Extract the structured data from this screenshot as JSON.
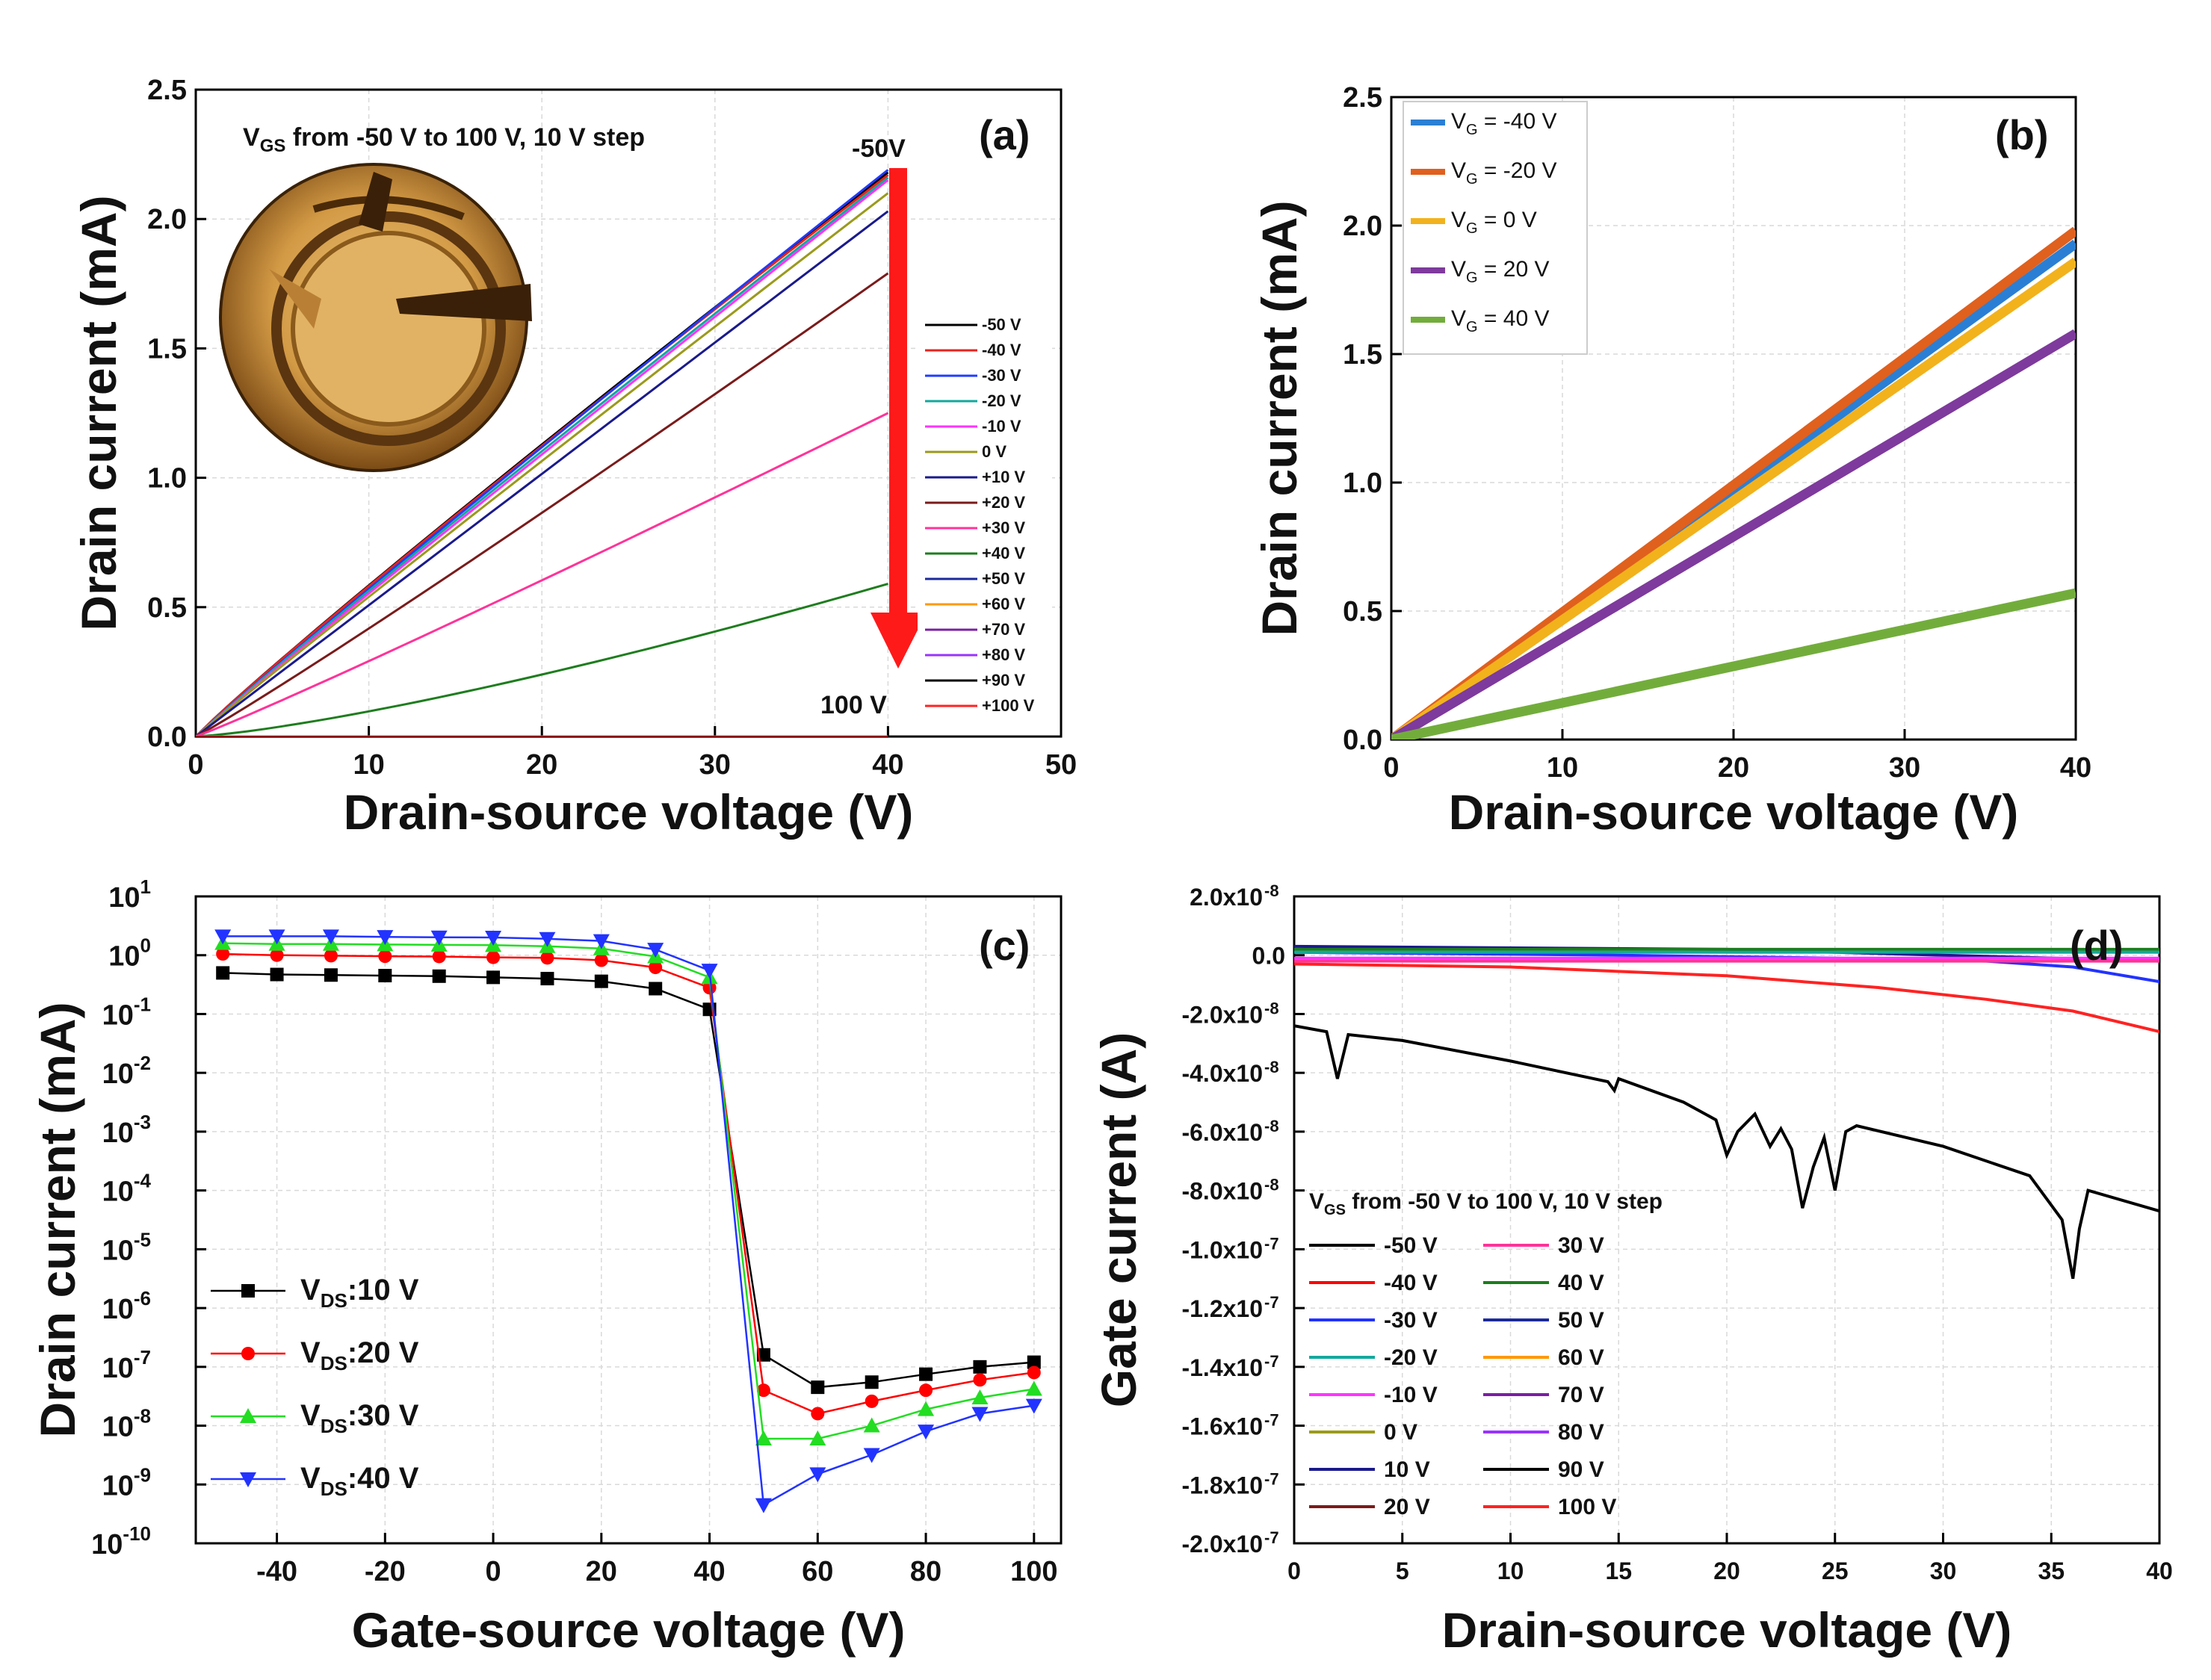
{
  "chart_data": [
    {
      "panel": "(a)",
      "type": "line",
      "xlabel": "Drain-source voltage (V)",
      "ylabel": "Drain current (mA)",
      "xlim": [
        0,
        50
      ],
      "ylim": [
        0,
        2.5
      ],
      "xticks": [
        "0",
        "10",
        "20",
        "30",
        "40",
        "50"
      ],
      "yticks": [
        "0.0",
        "0.5",
        "1.0",
        "1.5",
        "2.0",
        "2.5"
      ],
      "annotations": {
        "sweep_label": "V",
        "sweep_sub": "GS",
        "sweep_rest": " from -50 V to 100 V, 10 V step",
        "arrow_top": "-50V",
        "arrow_bottom": "100 V",
        "inset": "device micrograph"
      },
      "x": [
        0,
        40
      ],
      "series": [
        {
          "name": "-50 V",
          "color": "#000000",
          "end": 2.18,
          "curve": 0.95
        },
        {
          "name": "-40 V",
          "color": "#e8231c",
          "end": 2.17,
          "curve": 0.95
        },
        {
          "name": "-30 V",
          "color": "#1f3bff",
          "end": 2.19,
          "curve": 0.97
        },
        {
          "name": "-20 V",
          "color": "#13a89e",
          "end": 2.16,
          "curve": 0.97
        },
        {
          "name": "-10 V",
          "color": "#ff33ff",
          "end": 2.15,
          "curve": 0.98
        },
        {
          "name": "0 V",
          "color": "#9a9a1c",
          "end": 2.1,
          "curve": 0.98
        },
        {
          "name": "+10 V",
          "color": "#1a1a8c",
          "end": 2.03,
          "curve": 1.0
        },
        {
          "name": "+20 V",
          "color": "#7a1b1b",
          "end": 1.79,
          "curve": 1.05
        },
        {
          "name": "+30 V",
          "color": "#ff3399",
          "end": 1.25,
          "curve": 1.05
        },
        {
          "name": "+40 V",
          "color": "#1e7d1e",
          "end": 0.59,
          "curve": 1.3
        },
        {
          "name": "+50 V",
          "color": "#1b2a9a",
          "end": 0.0,
          "curve": 1.0
        },
        {
          "name": "+60 V",
          "color": "#ff9900",
          "end": 0.0,
          "curve": 1.0
        },
        {
          "name": "+70 V",
          "color": "#7a1fa2",
          "end": 0.0,
          "curve": 1.0
        },
        {
          "name": "+80 V",
          "color": "#9933ff",
          "end": 0.0,
          "curve": 1.0
        },
        {
          "name": "+90 V",
          "color": "#000000",
          "end": 0.0,
          "curve": 1.0
        },
        {
          "name": "+100 V",
          "color": "#ff2222",
          "end": 0.0,
          "curve": 1.0
        }
      ]
    },
    {
      "panel": "(b)",
      "type": "line",
      "xlabel": "Drain-source voltage (V)",
      "ylabel": "Drain current (mA)",
      "xlim": [
        0,
        40
      ],
      "ylim": [
        0,
        2.5
      ],
      "xticks": [
        "0",
        "10",
        "20",
        "30",
        "40"
      ],
      "yticks": [
        "0.0",
        "0.5",
        "1.0",
        "1.5",
        "2.0",
        "2.5"
      ],
      "x": [
        0,
        40
      ],
      "series": [
        {
          "name_main": "V",
          "name_sub": "G",
          "name_rest": " = -40 V",
          "color": "#2a7fd4",
          "end": 1.93
        },
        {
          "name_main": "V",
          "name_sub": "G",
          "name_rest": " = -20 V",
          "color": "#e0601e",
          "end": 1.98
        },
        {
          "name_main": "V",
          "name_sub": "G",
          "name_rest": " = 0 V",
          "color": "#f2b21c",
          "end": 1.86
        },
        {
          "name_main": "V",
          "name_sub": "G",
          "name_rest": " = 20 V",
          "color": "#7e3a9c",
          "end": 1.58
        },
        {
          "name_main": "V",
          "name_sub": "G",
          "name_rest": " = 40 V",
          "color": "#72ad3c",
          "end": 0.57
        }
      ]
    },
    {
      "panel": "(c)",
      "type": "line",
      "yscale": "log",
      "xlabel": "Gate-source voltage (V)",
      "ylabel": "Drain current (mA)",
      "xlim": [
        -55,
        105
      ],
      "ylim_exp": [
        -10,
        1
      ],
      "xticks": [
        "-40",
        "-20",
        "0",
        "20",
        "40",
        "60",
        "80",
        "100"
      ],
      "ytick_base": "10",
      "x": [
        -50,
        -40,
        -30,
        -20,
        -10,
        0,
        10,
        20,
        30,
        40,
        50,
        60,
        70,
        80,
        90,
        100
      ],
      "series": [
        {
          "name_main": "V",
          "name_sub": "DS",
          "name_rest": ":10 V",
          "color": "#000000",
          "marker": "square",
          "values": [
            0.5,
            0.47,
            0.46,
            0.45,
            0.44,
            0.42,
            0.4,
            0.36,
            0.27,
            0.12,
            1.6e-07,
            4.5e-08,
            5.5e-08,
            7.5e-08,
            1e-07,
            1.2e-07
          ]
        },
        {
          "name_main": "V",
          "name_sub": "DS",
          "name_rest": ":20 V",
          "color": "#ff0000",
          "marker": "circle",
          "values": [
            1.05,
            1.0,
            0.98,
            0.96,
            0.95,
            0.92,
            0.9,
            0.82,
            0.62,
            0.28,
            4e-08,
            1.6e-08,
            2.6e-08,
            4e-08,
            6e-08,
            8e-08
          ]
        },
        {
          "name_main": "V",
          "name_sub": "DS",
          "name_rest": ":30 V",
          "color": "#22dd22",
          "marker": "triangle-up",
          "values": [
            1.6,
            1.55,
            1.55,
            1.52,
            1.5,
            1.48,
            1.42,
            1.3,
            0.95,
            0.42,
            6e-09,
            6e-09,
            1e-08,
            1.9e-08,
            3e-08,
            4.2e-08
          ]
        },
        {
          "name_main": "V",
          "name_sub": "DS",
          "name_rest": ":40 V",
          "color": "#2233ff",
          "marker": "triangle-down",
          "values": [
            2.1,
            2.1,
            2.1,
            2.05,
            2.02,
            2.0,
            1.9,
            1.75,
            1.25,
            0.55,
            4.5e-10,
            1.5e-09,
            3.2e-09,
            8e-09,
            1.6e-08,
            2.2e-08
          ]
        }
      ]
    },
    {
      "panel": "(d)",
      "type": "line",
      "xlabel": "Drain-source voltage (V)",
      "ylabel": "Gate current (A)",
      "xlim": [
        0,
        40
      ],
      "ylim": [
        -2e-07,
        2e-08
      ],
      "xticks": [
        "0",
        "5",
        "10",
        "15",
        "20",
        "25",
        "30",
        "35",
        "40"
      ],
      "yticks": [
        {
          "value": 2e-08,
          "mant": "2.0x10",
          "exp": "-8"
        },
        {
          "value": 0,
          "mant": "0.0",
          "exp": ""
        },
        {
          "value": -2e-08,
          "mant": "-2.0x10",
          "exp": "-8"
        },
        {
          "value": -4e-08,
          "mant": "-4.0x10",
          "exp": "-8"
        },
        {
          "value": -6e-08,
          "mant": "-6.0x10",
          "exp": "-8"
        },
        {
          "value": -8e-08,
          "mant": "-8.0x10",
          "exp": "-8"
        },
        {
          "value": -1e-07,
          "mant": "-1.0x10",
          "exp": "-7"
        },
        {
          "value": -1.2e-07,
          "mant": "-1.2x10",
          "exp": "-7"
        },
        {
          "value": -1.4e-07,
          "mant": "-1.4x10",
          "exp": "-7"
        },
        {
          "value": -1.6e-07,
          "mant": "-1.6x10",
          "exp": "-7"
        },
        {
          "value": -1.8e-07,
          "mant": "-1.8x10",
          "exp": "-7"
        },
        {
          "value": -2e-07,
          "mant": "-2.0x10",
          "exp": "-7"
        }
      ],
      "legend_title_main": "V",
      "legend_title_sub": "GS",
      "legend_title_rest": " from -50 V to 100 V, 10 V step",
      "legend": [
        {
          "name": "-50 V",
          "color": "#000000"
        },
        {
          "name": "-40 V",
          "color": "#ff0000"
        },
        {
          "name": "-30 V",
          "color": "#2233ff"
        },
        {
          "name": "-20 V",
          "color": "#13a89e"
        },
        {
          "name": "-10 V",
          "color": "#ff33ff"
        },
        {
          "name": "0 V",
          "color": "#9a9a1c"
        },
        {
          "name": "10 V",
          "color": "#1a1a8c"
        },
        {
          "name": "20 V",
          "color": "#7a1b1b"
        },
        {
          "name": "30 V",
          "color": "#ff3399"
        },
        {
          "name": "40 V",
          "color": "#1e7d1e"
        },
        {
          "name": "50 V",
          "color": "#1b2a9a"
        },
        {
          "name": "60 V",
          "color": "#ff9900"
        },
        {
          "name": "70 V",
          "color": "#7a1fa2"
        },
        {
          "name": "80 V",
          "color": "#9933ff"
        },
        {
          "name": "90 V",
          "color": "#000000"
        },
        {
          "name": "100 V",
          "color": "#ff2222"
        }
      ],
      "series": [
        {
          "name": "-50 V",
          "color": "#000000",
          "points": [
            [
              0,
              -2.4e-08
            ],
            [
              1.5,
              -2.6e-08
            ],
            [
              2,
              -4.2e-08
            ],
            [
              2.5,
              -2.7e-08
            ],
            [
              5,
              -2.9e-08
            ],
            [
              10,
              -3.6e-08
            ],
            [
              14.5,
              -4.3e-08
            ],
            [
              14.8,
              -4.6e-08
            ],
            [
              15,
              -4.2e-08
            ],
            [
              18,
              -5e-08
            ],
            [
              19.5,
              -5.6e-08
            ],
            [
              20,
              -6.8e-08
            ],
            [
              20.5,
              -6e-08
            ],
            [
              21.3,
              -5.4e-08
            ],
            [
              22,
              -6.5e-08
            ],
            [
              22.5,
              -5.9e-08
            ],
            [
              23,
              -6.6e-08
            ],
            [
              23.5,
              -8.6e-08
            ],
            [
              24,
              -7.2e-08
            ],
            [
              24.5,
              -6.2e-08
            ],
            [
              25,
              -8e-08
            ],
            [
              25.5,
              -6e-08
            ],
            [
              26,
              -5.8e-08
            ],
            [
              30,
              -6.5e-08
            ],
            [
              34,
              -7.5e-08
            ],
            [
              35.5,
              -9e-08
            ],
            [
              36,
              -1.1e-07
            ],
            [
              36.3,
              -9.3e-08
            ],
            [
              36.7,
              -8e-08
            ],
            [
              40,
              -8.7e-08
            ]
          ]
        },
        {
          "name": "100 V",
          "color": "#ff2222",
          "points": [
            [
              0,
              -3e-09
            ],
            [
              10,
              -4e-09
            ],
            [
              20,
              -7e-09
            ],
            [
              27,
              -1.1e-08
            ],
            [
              32,
              -1.5e-08
            ],
            [
              36,
              -1.9e-08
            ],
            [
              40,
              -2.6e-08
            ]
          ]
        },
        {
          "name": "-30 V",
          "color": "#2233ff",
          "points": [
            [
              0,
              1e-09
            ],
            [
              15,
              0
            ],
            [
              25,
              -1e-09
            ],
            [
              32,
              -2e-09
            ],
            [
              36,
              -4e-09
            ],
            [
              40,
              -9e-09
            ]
          ]
        },
        {
          "name": "10 V",
          "color": "#1a1a8c",
          "points": [
            [
              0,
              3e-09
            ],
            [
              20,
              2e-09
            ],
            [
              30,
              0
            ],
            [
              40,
              -2e-09
            ]
          ]
        },
        {
          "name": "40 V",
          "color": "#1e7d1e",
          "points": [
            [
              0,
              2e-09
            ],
            [
              40,
              2e-09
            ]
          ]
        },
        {
          "name": "-20 V",
          "color": "#13a89e",
          "points": [
            [
              0,
              1e-09
            ],
            [
              40,
              1e-09
            ]
          ]
        },
        {
          "name": "-10 V",
          "color": "#ff33ff",
          "points": [
            [
              0,
              -1e-09
            ],
            [
              40,
              -1e-09
            ]
          ]
        },
        {
          "name": "30 V",
          "color": "#ff3399",
          "points": [
            [
              0,
              -2e-09
            ],
            [
              40,
              -2e-09
            ]
          ]
        }
      ]
    }
  ]
}
